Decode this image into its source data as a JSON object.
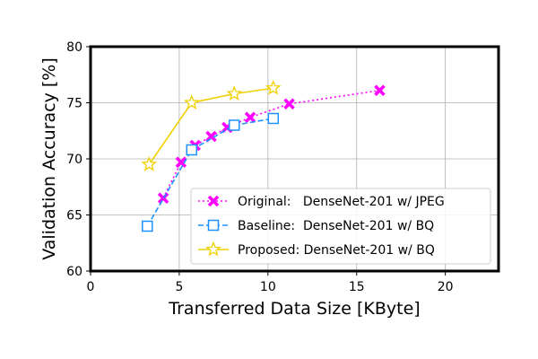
{
  "chart_data": {
    "type": "line",
    "title": "",
    "xlabel": "Transferred Data Size [KByte]",
    "ylabel": "Validation Accuracy [%]",
    "xlim": [
      0,
      23
    ],
    "ylim": [
      60,
      80
    ],
    "xticks": [
      0,
      5,
      10,
      15,
      20
    ],
    "yticks": [
      60,
      65,
      70,
      75,
      80
    ],
    "grid": true,
    "legend_position": "lower right",
    "series": [
      {
        "name": "Original:   DenseNet-201 w/ JPEG",
        "color": "#ff00ff",
        "line_style": "dotted",
        "marker": "x",
        "x": [
          4.1,
          5.1,
          5.9,
          6.8,
          7.7,
          9.0,
          11.2,
          16.3
        ],
        "y": [
          66.5,
          69.7,
          71.2,
          72.0,
          72.8,
          73.7,
          74.9,
          76.1
        ]
      },
      {
        "name": "Baseline:  DenseNet-201 w/ BQ",
        "color": "#1e90ff",
        "line_style": "dashed",
        "marker": "square",
        "x": [
          3.2,
          5.7,
          8.1,
          10.3
        ],
        "y": [
          64.0,
          70.8,
          73.0,
          73.6
        ]
      },
      {
        "name": "Proposed: DenseNet-201 w/ BQ",
        "color": "#f0d000",
        "line_style": "solid",
        "marker": "star",
        "x": [
          3.3,
          5.7,
          8.1,
          10.3
        ],
        "y": [
          69.5,
          75.0,
          75.8,
          76.3
        ]
      }
    ]
  }
}
